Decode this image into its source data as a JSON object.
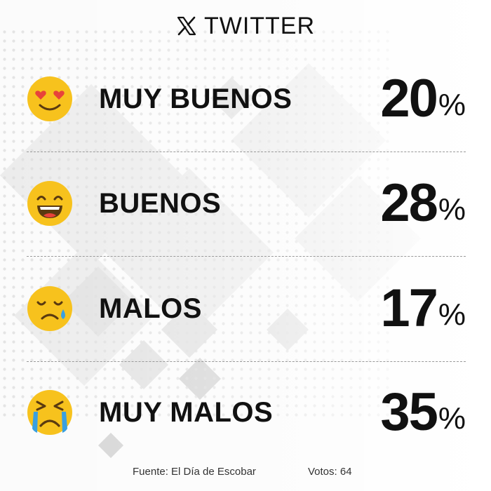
{
  "header": {
    "brand": "TWITTER",
    "logo_icon": "x-logo-icon"
  },
  "chart_data": {
    "type": "table",
    "rows": [
      {
        "label": "MUY BUENOS",
        "value": 20,
        "value_text": "20",
        "unit": "%",
        "emoji": "heart-eyes-emoji-icon"
      },
      {
        "label": "BUENOS",
        "value": 28,
        "value_text": "28",
        "unit": "%",
        "emoji": "grinning-emoji-icon"
      },
      {
        "label": "MALOS",
        "value": 17,
        "value_text": "17",
        "unit": "%",
        "emoji": "sad-tear-emoji-icon"
      },
      {
        "label": "MUY MALOS",
        "value": 35,
        "value_text": "35",
        "unit": "%",
        "emoji": "crying-emoji-icon"
      }
    ]
  },
  "footer": {
    "source": "Fuente: El Día de Escobar",
    "votes": "Votos: 64"
  },
  "colors": {
    "emoji": "#F7C21D",
    "emoji_dark": "#5a3a10",
    "heart": "#E8423A",
    "tear": "#3AA0E0",
    "text": "#111111"
  }
}
